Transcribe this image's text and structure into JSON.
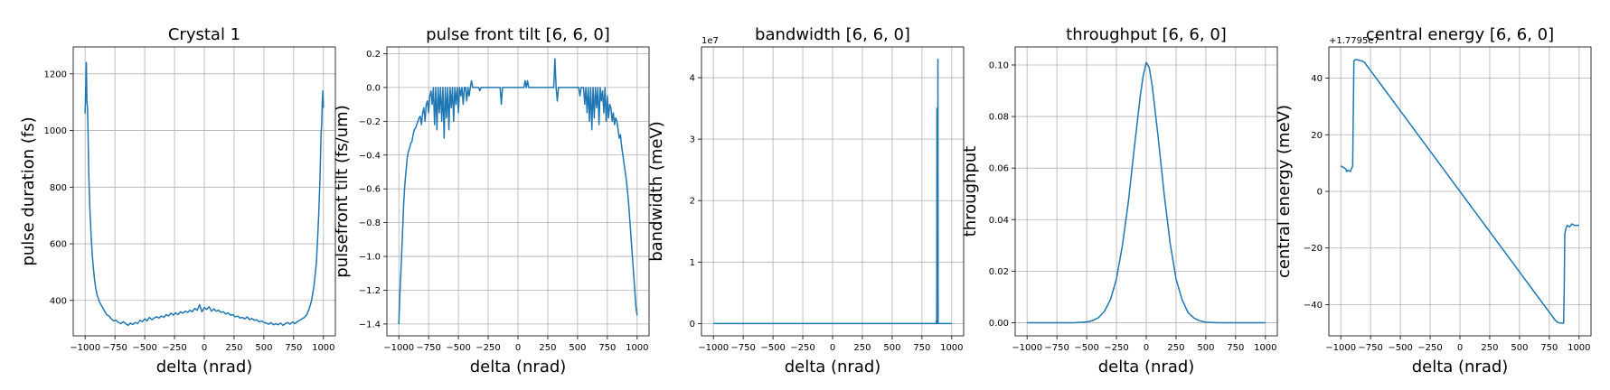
{
  "figure": {
    "background": "#ffffff",
    "line_color": "#1f77b4"
  },
  "chart_data": [
    {
      "type": "line",
      "title": "Crystal 1",
      "xlabel": "delta (nrad)",
      "ylabel": "pulse duration (fs)",
      "xlim": [
        -1100,
        1100
      ],
      "ylim": [
        275,
        1295
      ],
      "xticks": [
        -1000,
        -750,
        -500,
        -250,
        0,
        250,
        500,
        750,
        1000
      ],
      "xtick_labels": [
        "−1000",
        "−750",
        "−500",
        "−250",
        "0",
        "250",
        "500",
        "750",
        "1000"
      ],
      "yticks": [
        400,
        600,
        800,
        1000,
        1200
      ],
      "ytick_labels": [
        "400",
        "600",
        "800",
        "1000",
        "1200"
      ],
      "grid": true,
      "series": [
        {
          "x": [
            -1000,
            -995,
            -990,
            -985,
            -980,
            -975,
            -970,
            -960,
            -950,
            -940,
            -930,
            -920,
            -910,
            -900,
            -880,
            -860,
            -840,
            -820,
            -800,
            -780,
            -760,
            -740,
            -720,
            -700,
            -680,
            -660,
            -640,
            -620,
            -600,
            -580,
            -560,
            -540,
            -520,
            -500,
            -480,
            -460,
            -440,
            -420,
            -400,
            -380,
            -360,
            -340,
            -320,
            -300,
            -280,
            -260,
            -240,
            -220,
            -200,
            -180,
            -160,
            -140,
            -120,
            -100,
            -80,
            -60,
            -40,
            -20,
            0,
            20,
            40,
            60,
            80,
            100,
            120,
            140,
            160,
            180,
            200,
            220,
            240,
            260,
            280,
            300,
            320,
            340,
            360,
            380,
            400,
            420,
            440,
            460,
            480,
            500,
            520,
            540,
            560,
            580,
            600,
            620,
            640,
            660,
            680,
            700,
            720,
            740,
            760,
            780,
            800,
            820,
            840,
            860,
            880,
            900,
            920,
            940,
            950,
            960,
            970,
            975,
            980,
            985,
            990,
            995,
            1000
          ],
          "y": [
            1060,
            1150,
            1240,
            1100,
            1080,
            980,
            850,
            720,
            630,
            560,
            510,
            470,
            440,
            420,
            395,
            380,
            365,
            350,
            345,
            335,
            328,
            330,
            322,
            318,
            325,
            318,
            312,
            320,
            315,
            322,
            318,
            330,
            325,
            335,
            328,
            340,
            332,
            338,
            342,
            338,
            345,
            340,
            350,
            345,
            355,
            348,
            356,
            350,
            360,
            355,
            362,
            358,
            365,
            360,
            372,
            365,
            385,
            360,
            375,
            368,
            378,
            362,
            370,
            362,
            365,
            358,
            360,
            352,
            356,
            348,
            350,
            342,
            345,
            338,
            340,
            335,
            342,
            332,
            336,
            330,
            332,
            324,
            328,
            322,
            320,
            316,
            322,
            314,
            318,
            314,
            320,
            312,
            318,
            322,
            316,
            324,
            318,
            325,
            330,
            335,
            340,
            350,
            370,
            400,
            450,
            530,
            610,
            700,
            820,
            900,
            990,
            1020,
            1100,
            1140,
            1080
          ]
        }
      ]
    },
    {
      "type": "line",
      "title": "pulse front tilt [6, 6, 0]",
      "xlabel": "delta (nrad)",
      "ylabel": "pulsefront tilt (fs/um)",
      "xlim": [
        -1100,
        1100
      ],
      "ylim": [
        -1.47,
        0.24
      ],
      "xticks": [
        -1000,
        -750,
        -500,
        -250,
        0,
        250,
        500,
        750,
        1000
      ],
      "xtick_labels": [
        "−1000",
        "−750",
        "−500",
        "−250",
        "0",
        "250",
        "500",
        "750",
        "1000"
      ],
      "yticks": [
        -1.4,
        -1.2,
        -1.0,
        -0.8,
        -0.6,
        -0.4,
        -0.2,
        0.0,
        0.2
      ],
      "ytick_labels": [
        "−1.4",
        "−1.2",
        "−1.0",
        "−0.8",
        "−0.6",
        "−0.4",
        "−0.2",
        "0.0",
        "0.2"
      ],
      "grid": true,
      "series": [
        {
          "x": [
            -1000,
            -990,
            -980,
            -970,
            -960,
            -950,
            -940,
            -930,
            -920,
            -910,
            -900,
            -890,
            -880,
            -870,
            -860,
            -850,
            -840,
            -830,
            -820,
            -810,
            -800,
            -790,
            -780,
            -770,
            -760,
            -750,
            -740,
            -730,
            -720,
            -710,
            -700,
            -690,
            -680,
            -670,
            -660,
            -650,
            -640,
            -630,
            -620,
            -610,
            -600,
            -590,
            -580,
            -570,
            -560,
            -550,
            -540,
            -530,
            -520,
            -510,
            -500,
            -490,
            -480,
            -470,
            -460,
            -450,
            -440,
            -430,
            -420,
            -410,
            -400,
            -390,
            -380,
            -350,
            -330,
            -320,
            -310,
            -300,
            -250,
            -200,
            -150,
            -140,
            -130,
            -120,
            -100,
            -50,
            0,
            50,
            60,
            70,
            80,
            90,
            100,
            150,
            200,
            250,
            300,
            310,
            320,
            330,
            340,
            350,
            400,
            450,
            500,
            510,
            520,
            530,
            540,
            550,
            560,
            570,
            580,
            590,
            600,
            610,
            620,
            630,
            640,
            650,
            660,
            670,
            680,
            690,
            700,
            710,
            720,
            730,
            740,
            750,
            760,
            770,
            780,
            790,
            800,
            810,
            820,
            830,
            840,
            850,
            860,
            870,
            880,
            890,
            900,
            910,
            920,
            930,
            940,
            950,
            960,
            970,
            980,
            990,
            1000
          ],
          "y": [
            -1.4,
            -1.2,
            -1.05,
            -0.88,
            -0.7,
            -0.58,
            -0.5,
            -0.42,
            -0.38,
            -0.36,
            -0.33,
            -0.32,
            -0.28,
            -0.25,
            -0.24,
            -0.22,
            -0.2,
            -0.18,
            -0.17,
            -0.22,
            -0.15,
            -0.12,
            -0.2,
            -0.1,
            -0.08,
            -0.15,
            -0.05,
            -0.02,
            -0.1,
            0.0,
            -0.22,
            0.0,
            -0.25,
            0.0,
            -0.15,
            0.0,
            -0.2,
            0.0,
            -0.3,
            0.0,
            -0.18,
            0.0,
            -0.25,
            0.0,
            -0.12,
            0.0,
            -0.2,
            0.0,
            -0.1,
            0.0,
            -0.15,
            0.0,
            -0.05,
            0.0,
            -0.1,
            0.0,
            0.0,
            -0.08,
            0.0,
            -0.05,
            0.0,
            0.04,
            0.0,
            0.0,
            0.0,
            -0.02,
            0.0,
            0.0,
            0.0,
            0.0,
            0.0,
            -0.1,
            0.0,
            0.0,
            0.0,
            0.0,
            0.0,
            0.0,
            0.04,
            0.0,
            0.04,
            0.0,
            0.0,
            0.0,
            0.0,
            0.0,
            0.0,
            0.17,
            0.0,
            -0.08,
            0.0,
            0.0,
            0.0,
            0.0,
            0.0,
            0.0,
            -0.05,
            0.0,
            0.0,
            0.0,
            -0.1,
            0.0,
            -0.15,
            0.0,
            -0.2,
            0.0,
            -0.25,
            0.0,
            -0.18,
            0.0,
            -0.12,
            0.0,
            -0.22,
            0.0,
            -0.08,
            -0.02,
            -0.15,
            0.0,
            -0.2,
            -0.05,
            -0.18,
            -0.1,
            -0.12,
            -0.2,
            -0.15,
            -0.22,
            -0.18,
            -0.2,
            -0.25,
            -0.3,
            -0.28,
            -0.35,
            -0.4,
            -0.45,
            -0.5,
            -0.55,
            -0.62,
            -0.7,
            -0.8,
            -0.9,
            -1.0,
            -1.1,
            -1.2,
            -1.3,
            -1.35
          ]
        }
      ]
    },
    {
      "type": "line",
      "title": "bandwidth [6, 6, 0]",
      "xlabel": "delta (nrad)",
      "ylabel": "bandwidth (meV)",
      "offset_text": "1e7",
      "xlim": [
        -1100,
        1100
      ],
      "ylim": [
        -0.2,
        4.5
      ],
      "xticks": [
        -1000,
        -750,
        -500,
        -250,
        0,
        250,
        500,
        750,
        1000
      ],
      "xtick_labels": [
        "−1000",
        "−750",
        "−500",
        "−250",
        "0",
        "250",
        "500",
        "750",
        "1000"
      ],
      "yticks": [
        0,
        1,
        2,
        3,
        4
      ],
      "ytick_labels": [
        "0",
        "1",
        "2",
        "3",
        "4"
      ],
      "grid": true,
      "series": [
        {
          "x": [
            -1000,
            870,
            872,
            874,
            876,
            878,
            880,
            882,
            884,
            886,
            1000
          ],
          "y": [
            0,
            0,
            0.05,
            0,
            3.5,
            0,
            0.1,
            0,
            4.3,
            0,
            0
          ]
        }
      ]
    },
    {
      "type": "line",
      "title": "throughput [6, 6, 0]",
      "xlabel": "delta (nrad)",
      "ylabel": "throughput",
      "xlim": [
        -1100,
        1100
      ],
      "ylim": [
        -0.0051,
        0.107
      ],
      "xticks": [
        -1000,
        -750,
        -500,
        -250,
        0,
        250,
        500,
        750,
        1000
      ],
      "xtick_labels": [
        "−1000",
        "−750",
        "−500",
        "−250",
        "0",
        "250",
        "500",
        "750",
        "1000"
      ],
      "yticks": [
        0.0,
        0.02,
        0.04,
        0.06,
        0.08,
        0.1
      ],
      "ytick_labels": [
        "0.00",
        "0.02",
        "0.04",
        "0.06",
        "0.08",
        "0.10"
      ],
      "grid": true,
      "series": [
        {
          "x": [
            -1000,
            -800,
            -600,
            -500,
            -450,
            -400,
            -350,
            -300,
            -250,
            -200,
            -150,
            -100,
            -50,
            -25,
            0,
            25,
            50,
            100,
            150,
            200,
            250,
            300,
            350,
            400,
            450,
            500,
            600,
            800,
            1000
          ],
          "y": [
            0.0,
            0.0,
            0.0,
            0.0003,
            0.0008,
            0.002,
            0.0045,
            0.009,
            0.017,
            0.03,
            0.047,
            0.068,
            0.088,
            0.096,
            0.101,
            0.099,
            0.092,
            0.072,
            0.05,
            0.031,
            0.017,
            0.009,
            0.004,
            0.0018,
            0.0007,
            0.0002,
            0.0,
            0.0,
            0.0
          ]
        }
      ]
    },
    {
      "type": "line",
      "title": "central energy [6, 6, 0]",
      "xlabel": "delta (nrad)",
      "ylabel": "central energy (meV)",
      "offset_text": "+1.7795e7",
      "xlim": [
        -1100,
        1100
      ],
      "ylim": [
        -51,
        51
      ],
      "xticks": [
        -1000,
        -750,
        -500,
        -250,
        0,
        250,
        500,
        750,
        1000
      ],
      "xtick_labels": [
        "−1000",
        "−750",
        "−500",
        "−250",
        "0",
        "250",
        "500",
        "750",
        "1000"
      ],
      "yticks": [
        -40,
        -20,
        0,
        20,
        40
      ],
      "ytick_labels": [
        "−40",
        "−20",
        "0",
        "20",
        "40"
      ],
      "grid": true,
      "series": [
        {
          "x": [
            -1000,
            -980,
            -960,
            -950,
            -940,
            -920,
            -910,
            -900,
            -890,
            -880,
            -860,
            -840,
            -820,
            -800,
            800,
            820,
            840,
            860,
            870,
            875,
            880,
            890,
            900,
            920,
            940,
            960,
            980,
            1000
          ],
          "y": [
            9,
            8.5,
            8,
            7,
            7.5,
            7,
            8,
            9,
            46,
            46.5,
            46.5,
            46.2,
            46.0,
            45.5,
            -45.5,
            -46.2,
            -46.5,
            -46.5,
            -46.5,
            -35,
            -15,
            -13,
            -12,
            -12.5,
            -11.5,
            -12,
            -12,
            -12
          ]
        }
      ]
    }
  ]
}
